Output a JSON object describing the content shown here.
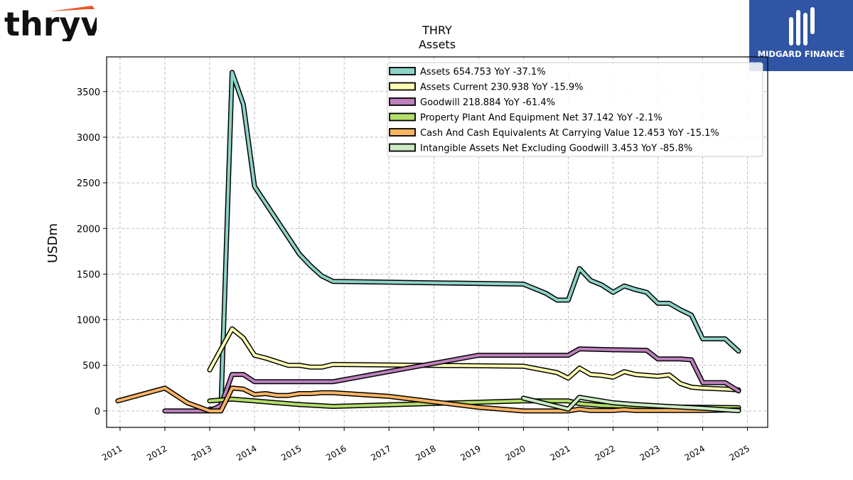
{
  "brand": {
    "left_logo_text": "thryv",
    "right_logo_text": "MIDGARD FINANCE",
    "accent_orange": "#e8582a",
    "right_logo_bg": "#2f55a4"
  },
  "chart_data": {
    "type": "line",
    "title": "THRY",
    "subtitle": "Assets",
    "ylabel": "USDm",
    "xlabel": "",
    "xlim": [
      2010.7,
      2025.45
    ],
    "ylim": [
      -180,
      3880
    ],
    "x_ticks": [
      "2011",
      "2012",
      "2013",
      "2014",
      "2015",
      "2016",
      "2017",
      "2018",
      "2019",
      "2020",
      "2021",
      "2022",
      "2023",
      "2024",
      "2025"
    ],
    "y_ticks": [
      "0",
      "500",
      "1000",
      "1500",
      "2000",
      "2500",
      "3000",
      "3500"
    ],
    "grid": true,
    "legend_position": "top-right",
    "series": [
      {
        "name": "Assets",
        "legend": "Assets  654.753 YoY -37.1%",
        "color": "#8dd3c7",
        "points": [
          [
            2013.0,
            20
          ],
          [
            2013.25,
            20
          ],
          [
            2013.5,
            3710
          ],
          [
            2013.75,
            3360
          ],
          [
            2014.0,
            2460
          ],
          [
            2014.5,
            2090
          ],
          [
            2015.0,
            1720
          ],
          [
            2015.25,
            1590
          ],
          [
            2015.5,
            1480
          ],
          [
            2015.75,
            1420
          ],
          [
            2020.0,
            1390
          ],
          [
            2020.5,
            1290
          ],
          [
            2020.75,
            1215
          ],
          [
            2021.0,
            1215
          ],
          [
            2021.25,
            1560
          ],
          [
            2021.5,
            1430
          ],
          [
            2021.75,
            1380
          ],
          [
            2022.0,
            1300
          ],
          [
            2022.25,
            1370
          ],
          [
            2022.5,
            1330
          ],
          [
            2022.75,
            1300
          ],
          [
            2023.0,
            1180
          ],
          [
            2023.25,
            1180
          ],
          [
            2023.5,
            1110
          ],
          [
            2023.75,
            1050
          ],
          [
            2024.0,
            790
          ],
          [
            2024.5,
            790
          ],
          [
            2024.8,
            655
          ]
        ]
      },
      {
        "name": "Assets Current",
        "legend": "Assets Current  230.938 YoY -15.9%",
        "color": "#ffffb3",
        "points": [
          [
            2013.0,
            450
          ],
          [
            2013.5,
            900
          ],
          [
            2013.75,
            800
          ],
          [
            2014.0,
            610
          ],
          [
            2014.25,
            580
          ],
          [
            2014.75,
            500
          ],
          [
            2015.0,
            500
          ],
          [
            2015.25,
            480
          ],
          [
            2015.5,
            480
          ],
          [
            2015.75,
            510
          ],
          [
            2020.0,
            490
          ],
          [
            2020.75,
            420
          ],
          [
            2021.0,
            360
          ],
          [
            2021.25,
            470
          ],
          [
            2021.5,
            400
          ],
          [
            2021.75,
            390
          ],
          [
            2022.0,
            370
          ],
          [
            2022.25,
            430
          ],
          [
            2022.5,
            400
          ],
          [
            2022.75,
            390
          ],
          [
            2023.0,
            380
          ],
          [
            2023.25,
            395
          ],
          [
            2023.5,
            300
          ],
          [
            2023.75,
            260
          ],
          [
            2024.0,
            250
          ],
          [
            2024.5,
            240
          ],
          [
            2024.8,
            231
          ]
        ]
      },
      {
        "name": "Goodwill",
        "legend": "Goodwill  218.884 YoY -61.4%",
        "color": "#bc80bd",
        "points": [
          [
            2012.0,
            0
          ],
          [
            2013.0,
            0
          ],
          [
            2013.25,
            60
          ],
          [
            2013.5,
            400
          ],
          [
            2013.75,
            400
          ],
          [
            2014.0,
            320
          ],
          [
            2015.75,
            320
          ],
          [
            2019.0,
            610
          ],
          [
            2021.0,
            610
          ],
          [
            2021.25,
            680
          ],
          [
            2022.0,
            670
          ],
          [
            2022.75,
            665
          ],
          [
            2023.0,
            570
          ],
          [
            2023.5,
            570
          ],
          [
            2023.75,
            560
          ],
          [
            2024.0,
            310
          ],
          [
            2024.5,
            310
          ],
          [
            2024.8,
            219
          ]
        ]
      },
      {
        "name": "Property Plant And Equipment Net",
        "legend": "Property Plant And Equipment Net  37.142 YoY -2.1%",
        "color": "#b3de69",
        "points": [
          [
            2013.0,
            110
          ],
          [
            2013.5,
            130
          ],
          [
            2014.0,
            110
          ],
          [
            2014.5,
            90
          ],
          [
            2015.0,
            70
          ],
          [
            2015.75,
            50
          ],
          [
            2020.0,
            110
          ],
          [
            2021.0,
            110
          ],
          [
            2021.25,
            80
          ],
          [
            2021.75,
            60
          ],
          [
            2022.5,
            50
          ],
          [
            2023.0,
            45
          ],
          [
            2024.0,
            40
          ],
          [
            2024.8,
            37
          ]
        ]
      },
      {
        "name": "Cash And Cash Equivalents At Carrying Value",
        "legend": "Cash And Cash Equivalents At Carrying Value  12.453 YoY -15.1%",
        "color": "#fdb462",
        "points": [
          [
            2010.95,
            110
          ],
          [
            2012.0,
            250
          ],
          [
            2012.5,
            90
          ],
          [
            2013.0,
            0
          ],
          [
            2013.25,
            0
          ],
          [
            2013.5,
            250
          ],
          [
            2013.75,
            240
          ],
          [
            2014.0,
            180
          ],
          [
            2014.25,
            190
          ],
          [
            2014.5,
            170
          ],
          [
            2014.75,
            170
          ],
          [
            2015.0,
            190
          ],
          [
            2015.25,
            190
          ],
          [
            2015.5,
            200
          ],
          [
            2015.75,
            200
          ],
          [
            2017.0,
            160
          ],
          [
            2019.0,
            40
          ],
          [
            2020.0,
            0
          ],
          [
            2021.0,
            0
          ],
          [
            2021.25,
            20
          ],
          [
            2021.5,
            5
          ],
          [
            2022.0,
            5
          ],
          [
            2022.25,
            15
          ],
          [
            2022.5,
            5
          ],
          [
            2023.0,
            5
          ],
          [
            2024.0,
            5
          ],
          [
            2024.8,
            12
          ]
        ]
      },
      {
        "name": "Intangible Assets Net Excluding Goodwill",
        "legend": "Intangible Assets Net Excluding Goodwill  3.453 YoY -85.8%",
        "color": "#ccebc5",
        "points": [
          [
            2020.0,
            140
          ],
          [
            2021.0,
            20
          ],
          [
            2021.25,
            150
          ],
          [
            2022.0,
            90
          ],
          [
            2022.5,
            70
          ],
          [
            2023.0,
            55
          ],
          [
            2024.0,
            30
          ],
          [
            2024.8,
            3.5
          ]
        ]
      }
    ]
  }
}
